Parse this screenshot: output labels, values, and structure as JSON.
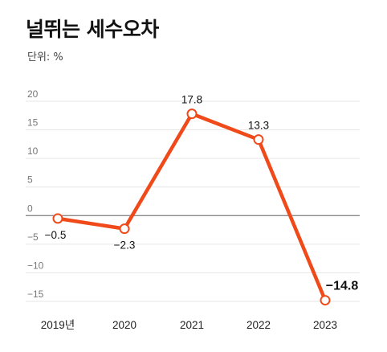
{
  "title": "널뛰는 세수오차",
  "unit_label": "단위: %",
  "colors": {
    "line": "#f04a1a",
    "marker_fill": "#ffffff",
    "gridline": "#e6e6e6",
    "zero_line": "#8a8a8a",
    "background": "#ffffff"
  },
  "chart_data": {
    "type": "line",
    "categories": [
      "2019년",
      "2020",
      "2021",
      "2022",
      "2023"
    ],
    "series": [
      {
        "values": [
          -0.5,
          -2.3,
          17.8,
          13.3,
          -14.8
        ],
        "labels": [
          "−0.5",
          "−2.3",
          "17.8",
          "13.3",
          "−14.8"
        ]
      }
    ],
    "emphasized_label_index": 4,
    "ylim": [
      -15,
      20
    ],
    "yticks": [
      20,
      15,
      10,
      5,
      0,
      -5,
      -10,
      -15
    ],
    "ytick_labels": [
      "20",
      "15",
      "10",
      "5",
      "0",
      "−5",
      "−10",
      "−15"
    ],
    "grid": true,
    "legend": "none"
  }
}
